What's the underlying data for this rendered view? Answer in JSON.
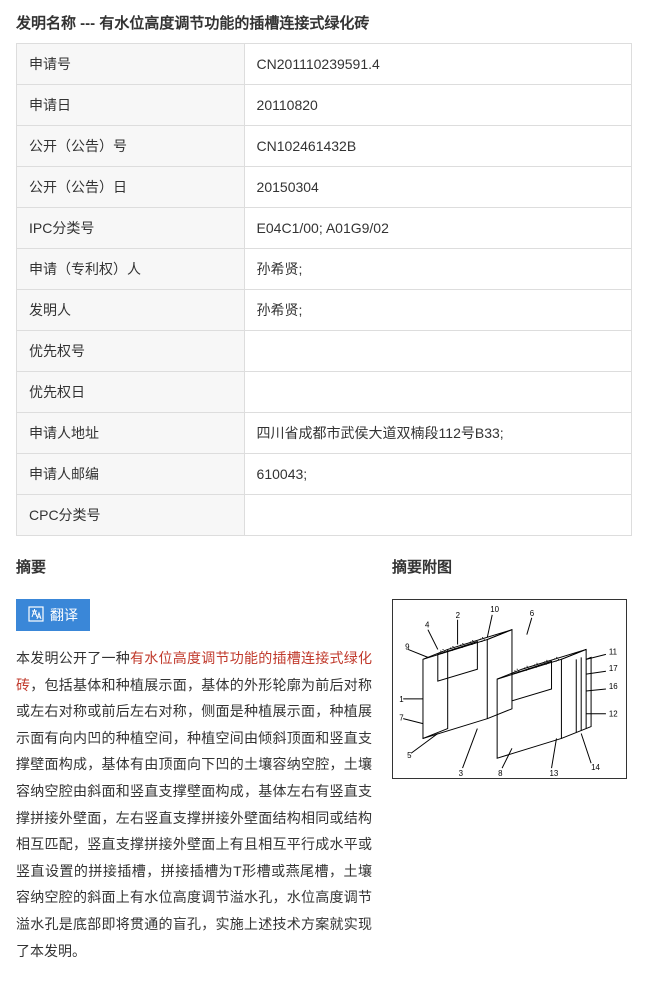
{
  "title_prefix": "发明名称 ---  ",
  "title_main": "有水位高度调节功能的插槽连接式绿化砖",
  "table": {
    "rows": [
      {
        "label": "申请号",
        "value": "CN201110239591.4"
      },
      {
        "label": "申请日",
        "value": "20110820"
      },
      {
        "label": "公开（公告）号",
        "value": "CN102461432B"
      },
      {
        "label": "公开（公告）日",
        "value": "20150304"
      },
      {
        "label": "IPC分类号",
        "value": "E04C1/00; A01G9/02"
      },
      {
        "label": "申请（专利权）人",
        "value": "孙希贤;"
      },
      {
        "label": "发明人",
        "value": "孙希贤;"
      },
      {
        "label": "优先权号",
        "value": ""
      },
      {
        "label": "优先权日",
        "value": ""
      },
      {
        "label": "申请人地址",
        "value": "四川省成都市武侯大道双楠段112号B33;"
      },
      {
        "label": "申请人邮编",
        "value": "610043;"
      },
      {
        "label": "CPC分类号",
        "value": ""
      }
    ]
  },
  "abstract_heading": "摘要",
  "figure_heading": "摘要附图",
  "translate_label": "翻译",
  "abstract": {
    "pre": "本发明公开了一种",
    "highlight": "有水位高度调节功能的插槽连接式绿化砖",
    "post": "，包括基体和种植展示面，基体的外形轮廓为前后对称或左右对称或前后左右对称，侧面是种植展示面，种植展示面有向内凹的种植空间，种植空间由倾斜顶面和竖直支撑壁面构成，基体有由顶面向下凹的土壤容纳空腔，土壤容纳空腔由斜面和竖直支撑壁面构成，基体左右有竖直支撑拼接外壁面，左右竖直支撑拼接外壁面结构相同或结构相互匹配，竖直支撑拼接外壁面上有且相互平行成水平或竖直设置的拼接插槽，拼接插槽为T形槽或燕尾槽，土壤容纳空腔的斜面上有水位高度调节溢水孔，水位高度调节溢水孔是底部即将贯通的盲孔，实施上述技术方案就实现了本发明。"
  },
  "figure_labels": [
    "10",
    "4",
    "2",
    "6",
    "9",
    "1",
    "7",
    "5",
    "3",
    "8",
    "11",
    "17",
    "16",
    "12",
    "13",
    "14"
  ]
}
